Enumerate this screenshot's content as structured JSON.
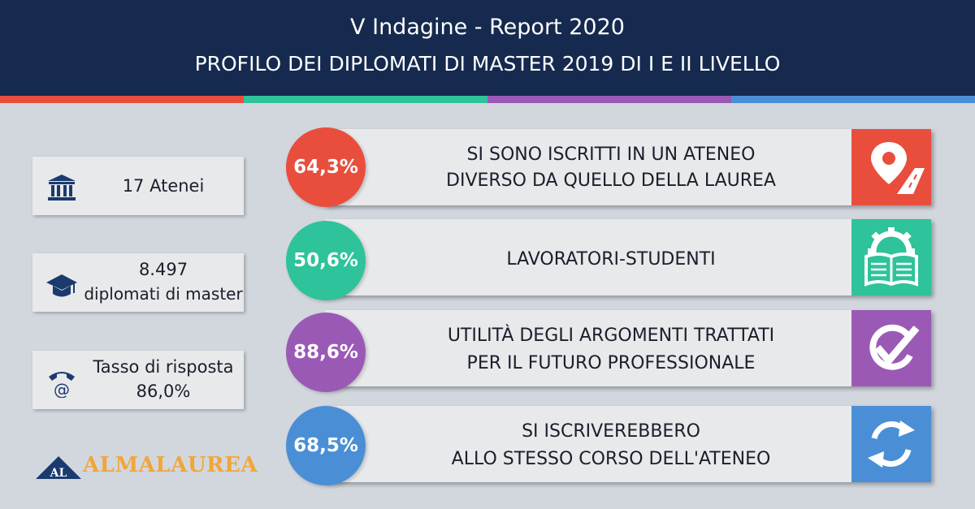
{
  "header": {
    "title": "V Indagine - Report 2020",
    "subtitle": "PROFILO DEI DIPLOMATI DI MASTER 2019 DI I E II LIVELLO"
  },
  "colors": {
    "header_bg": "#152a4e",
    "red": "#e94e3d",
    "green": "#2ec39a",
    "purple": "#9b59b6",
    "blue": "#4a8fd6",
    "logo_gold": "#f0a63a",
    "logo_navy": "#1b3b6f"
  },
  "stats": [
    {
      "icon": "university-icon",
      "line1": "17 Atenei",
      "line2": ""
    },
    {
      "icon": "graduation-cap-icon",
      "line1": "8.497",
      "line2": "diplomati di master"
    },
    {
      "icon": "phone-at-icon",
      "line1": "Tasso di risposta",
      "line2": "86,0%"
    }
  ],
  "logo": {
    "mark": "AL",
    "name": "ALMALAUREA"
  },
  "rows": [
    {
      "percent": "64,3%",
      "line1": "SI SONO ISCRITTI IN UN ATENEO",
      "line2": "DIVERSO DA QUELLO DELLA LAUREA",
      "icon": "map-pin-road-icon",
      "color": "#e94e3d"
    },
    {
      "percent": "50,6%",
      "line1": "LAVORATORI-STUDENTI",
      "line2": "",
      "icon": "gear-book-icon",
      "color": "#2ec39a"
    },
    {
      "percent": "88,6%",
      "line1": "UTILITÀ DEGLI ARGOMENTI TRATTATI",
      "line2": "PER IL FUTURO PROFESSIONALE",
      "icon": "checkmark-circle-icon",
      "color": "#9b59b6"
    },
    {
      "percent": "68,5%",
      "line1": "SI ISCRIVEREBBERO",
      "line2": "ALLO STESSO CORSO DELL'ATENEO",
      "icon": "refresh-arrows-icon",
      "color": "#4a8fd6"
    }
  ]
}
